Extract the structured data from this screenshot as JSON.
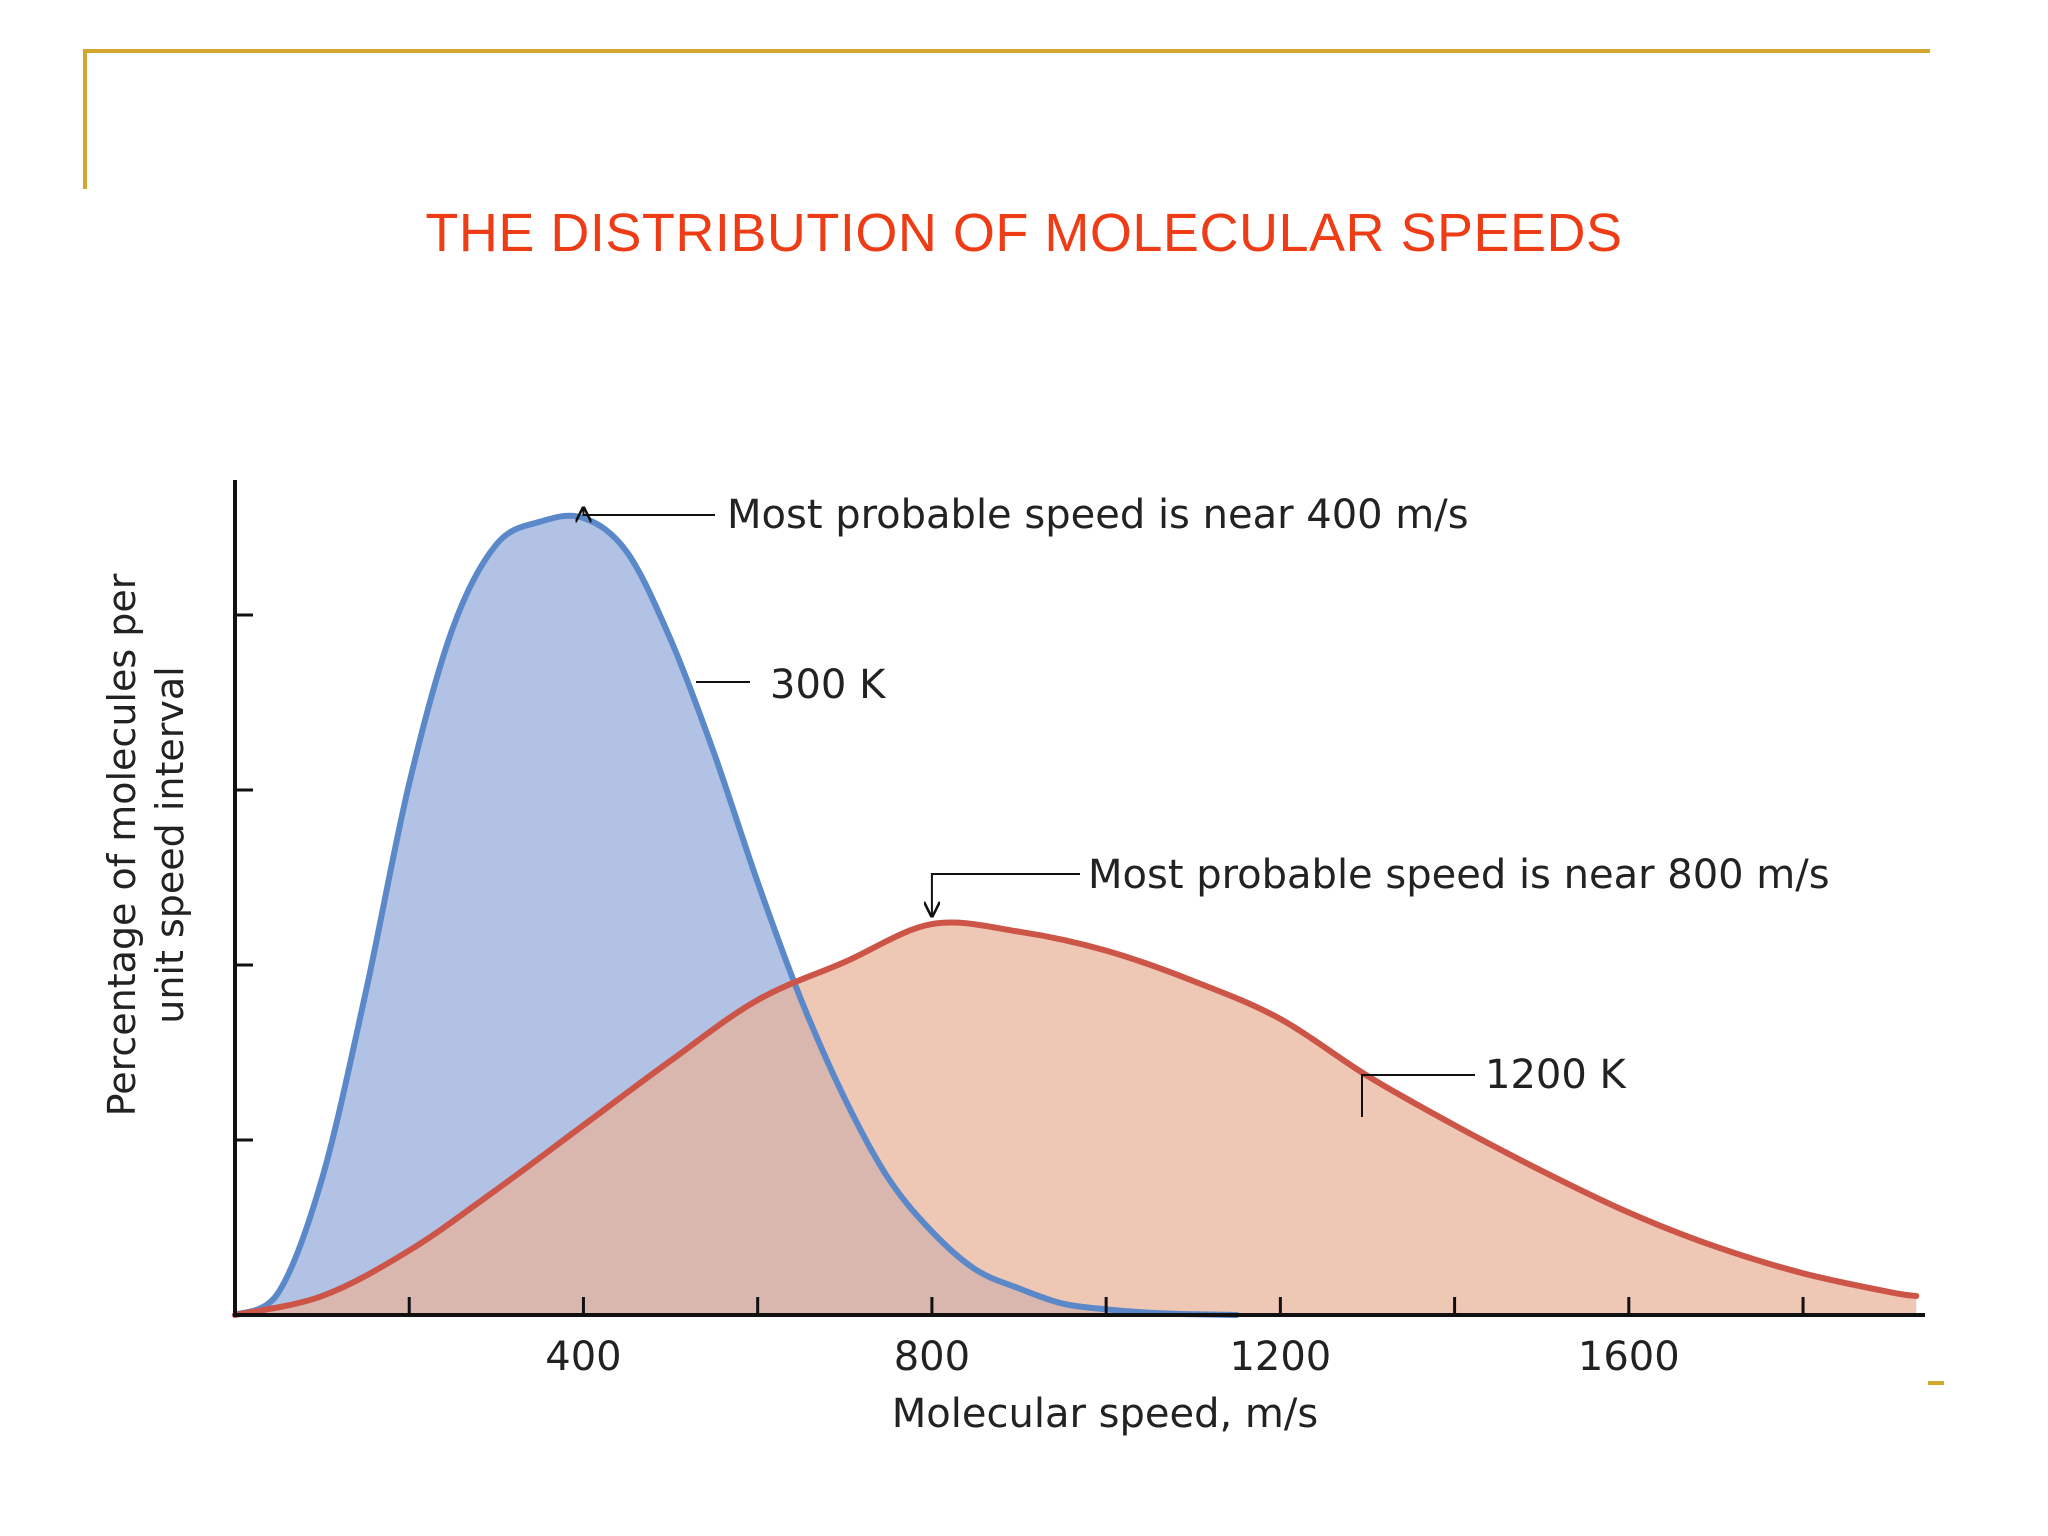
{
  "slide": {
    "title": "THE DISTRIBUTION OF MOLECULAR SPEEDS",
    "title_color": "#ee3d16",
    "frame_color": "#d4a82e"
  },
  "chart_data": {
    "type": "area",
    "xlabel": "Molecular speed, m/s",
    "ylabel_lines": [
      "Percentage of molecules per",
      "unit speed interval"
    ],
    "xlim": [
      0,
      1940
    ],
    "ylim": [
      0,
      0.0022
    ],
    "x_tick_labels": [
      "400",
      "800",
      "1200",
      "1600"
    ],
    "x_labeled_ticks": [
      400,
      800,
      1200,
      1600
    ],
    "x_minor_ticks": [
      200,
      400,
      600,
      800,
      1000,
      1200,
      1400,
      1600,
      1800
    ],
    "y_ticks_unlabeled": 4,
    "grid": false,
    "legend": "none",
    "series": [
      {
        "name": "300 K",
        "color": "#5b88c8",
        "fill": "#aebfe3",
        "x": [
          0,
          50,
          100,
          150,
          200,
          250,
          300,
          350,
          400,
          450,
          500,
          550,
          600,
          650,
          700,
          750,
          800,
          850,
          900,
          950,
          1000,
          1050,
          1100,
          1150
        ],
        "y": [
          0,
          6e-05,
          0.00036,
          0.00085,
          0.0014,
          0.00181,
          0.00203,
          0.00209,
          0.0021,
          0.00201,
          0.00178,
          0.00148,
          0.00114,
          0.00083,
          0.00057,
          0.00036,
          0.00022,
          0.00012,
          7e-05,
          3e-05,
          1.5e-05,
          6e-06,
          2e-06,
          0
        ]
      },
      {
        "name": "1200 K",
        "color": "#cc5548",
        "fill": "#e7b199",
        "x": [
          0,
          100,
          200,
          300,
          400,
          500,
          600,
          700,
          800,
          900,
          1000,
          1100,
          1200,
          1300,
          1400,
          1500,
          1600,
          1700,
          1800,
          1900,
          1930
        ],
        "y": [
          0,
          5e-05,
          0.00017,
          0.00033,
          0.0005,
          0.00067,
          0.00083,
          0.00093,
          0.00103,
          0.00101,
          0.00096,
          0.00088,
          0.00078,
          0.00063,
          0.0005,
          0.00038,
          0.00027,
          0.00018,
          0.00011,
          6e-05,
          5e-05
        ]
      }
    ],
    "annotations": [
      {
        "text": "Most probable speed is near 400 m/s",
        "x": 400,
        "y": 0.0021
      },
      {
        "text": "300 K",
        "x": 520,
        "y": 0.0018
      },
      {
        "text": "Most probable speed is near 800 m/s",
        "x": 800,
        "y": 0.00103
      },
      {
        "text": "1200 K",
        "x": 1300,
        "y": 0.00063
      }
    ]
  }
}
